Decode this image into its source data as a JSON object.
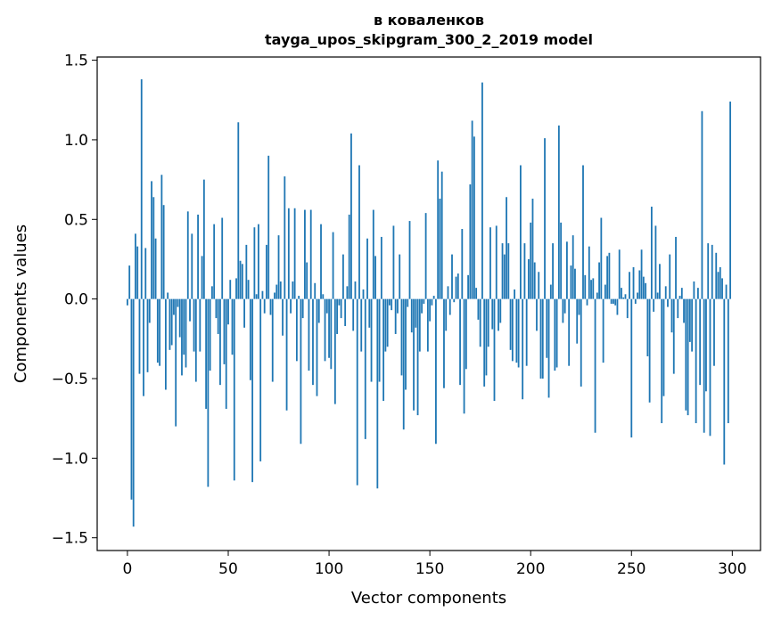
{
  "chart_data": {
    "type": "bar",
    "title_line1": "в коваленков",
    "title_line2": "tayga_upos_skipgram_300_2_2019 model",
    "xlabel": "Vector components",
    "ylabel": "Components values",
    "xlim": [
      -15,
      314
    ],
    "ylim": [
      -1.58,
      1.52
    ],
    "x_ticks": [
      0,
      50,
      100,
      150,
      200,
      250,
      300
    ],
    "y_ticks": [
      -1.5,
      -1.0,
      -0.5,
      0.0,
      0.5,
      1.0,
      1.5
    ],
    "x_tick_labels": [
      "0",
      "50",
      "100",
      "150",
      "200",
      "250",
      "300"
    ],
    "y_tick_labels": [
      "−1.5",
      "−1.0",
      "−0.5",
      "0.0",
      "0.5",
      "1.0",
      "1.5"
    ],
    "bar_color": "#1f77b4",
    "values": [
      -0.04,
      0.21,
      -1.26,
      -1.43,
      0.41,
      0.33,
      -0.47,
      1.38,
      -0.61,
      0.32,
      -0.46,
      -0.15,
      0.74,
      0.64,
      0.38,
      -0.4,
      -0.42,
      0.78,
      0.59,
      -0.57,
      0.04,
      -0.32,
      -0.29,
      -0.1,
      -0.8,
      -0.05,
      -0.24,
      -0.48,
      -0.35,
      -0.43,
      0.55,
      -0.14,
      0.41,
      -0.33,
      -0.52,
      0.53,
      -0.33,
      0.27,
      0.75,
      -0.69,
      -1.18,
      -0.45,
      0.08,
      0.47,
      -0.12,
      -0.22,
      -0.54,
      0.51,
      -0.41,
      -0.69,
      -0.16,
      0.12,
      -0.35,
      -1.14,
      0.13,
      1.11,
      0.24,
      0.22,
      -0.18,
      0.34,
      0.12,
      -0.51,
      -1.15,
      0.45,
      0.03,
      0.47,
      -1.02,
      0.05,
      -0.09,
      0.34,
      0.9,
      -0.1,
      -0.52,
      0.04,
      0.09,
      0.4,
      0.11,
      -0.23,
      0.77,
      -0.7,
      0.57,
      -0.09,
      0.11,
      0.57,
      -0.39,
      0.02,
      -0.91,
      -0.12,
      0.56,
      0.23,
      -0.45,
      0.56,
      -0.54,
      0.1,
      -0.61,
      -0.15,
      0.47,
      0.03,
      -0.39,
      -0.09,
      -0.37,
      -0.44,
      0.42,
      -0.66,
      -0.22,
      -0.04,
      -0.12,
      0.28,
      -0.17,
      0.08,
      0.53,
      1.04,
      -0.2,
      0.11,
      -1.17,
      0.84,
      -0.33,
      0.06,
      -0.88,
      0.38,
      -0.18,
      -0.52,
      0.56,
      0.27,
      -1.19,
      -0.52,
      0.39,
      -0.64,
      -0.33,
      -0.3,
      -0.04,
      -0.07,
      0.46,
      -0.22,
      -0.09,
      0.28,
      -0.48,
      -0.82,
      -0.57,
      -0.05,
      0.49,
      -0.21,
      -0.7,
      -0.18,
      -0.73,
      -0.33,
      -0.09,
      -0.03,
      0.54,
      -0.33,
      -0.14,
      -0.04,
      0.02,
      -0.91,
      0.87,
      0.63,
      0.8,
      -0.56,
      -0.2,
      0.08,
      -0.1,
      0.28,
      -0.02,
      0.14,
      0.16,
      -0.54,
      0.44,
      -0.72,
      -0.44,
      0.15,
      0.72,
      1.12,
      1.02,
      0.07,
      -0.13,
      -0.3,
      1.36,
      -0.55,
      -0.48,
      -0.3,
      0.45,
      -0.19,
      -0.64,
      0.46,
      -0.2,
      -0.15,
      0.35,
      0.28,
      0.64,
      0.35,
      -0.32,
      -0.39,
      0.06,
      -0.4,
      -0.43,
      0.84,
      -0.63,
      0.35,
      -0.42,
      0.25,
      0.48,
      0.63,
      0.23,
      -0.2,
      0.17,
      -0.5,
      -0.5,
      1.01,
      -0.37,
      -0.62,
      0.09,
      0.35,
      -0.45,
      -0.43,
      1.09,
      0.48,
      -0.15,
      -0.09,
      0.36,
      -0.42,
      0.21,
      0.4,
      0.19,
      -0.28,
      -0.1,
      -0.55,
      0.84,
      0.15,
      -0.04,
      0.33,
      0.12,
      0.13,
      -0.84,
      0.04,
      0.23,
      0.51,
      -0.4,
      0.09,
      0.27,
      0.29,
      -0.03,
      -0.03,
      -0.04,
      -0.1,
      0.31,
      0.07,
      0.01,
      0.03,
      -0.12,
      0.17,
      -0.87,
      0.2,
      -0.03,
      0.04,
      0.18,
      0.31,
      0.14,
      0.1,
      -0.36,
      -0.65,
      0.58,
      -0.08,
      0.46,
      0.04,
      0.22,
      -0.78,
      -0.61,
      0.08,
      -0.05,
      0.28,
      -0.21,
      -0.47,
      0.39,
      -0.12,
      0.02,
      0.07,
      -0.15,
      -0.7,
      -0.73,
      -0.27,
      -0.33,
      0.11,
      -0.78,
      0.07,
      -0.54,
      1.18,
      -0.84,
      -0.58,
      0.35,
      -0.86,
      0.34,
      -0.42,
      0.29,
      0.17,
      0.2,
      0.13,
      -1.04,
      0.09,
      -0.78,
      1.24
    ]
  }
}
